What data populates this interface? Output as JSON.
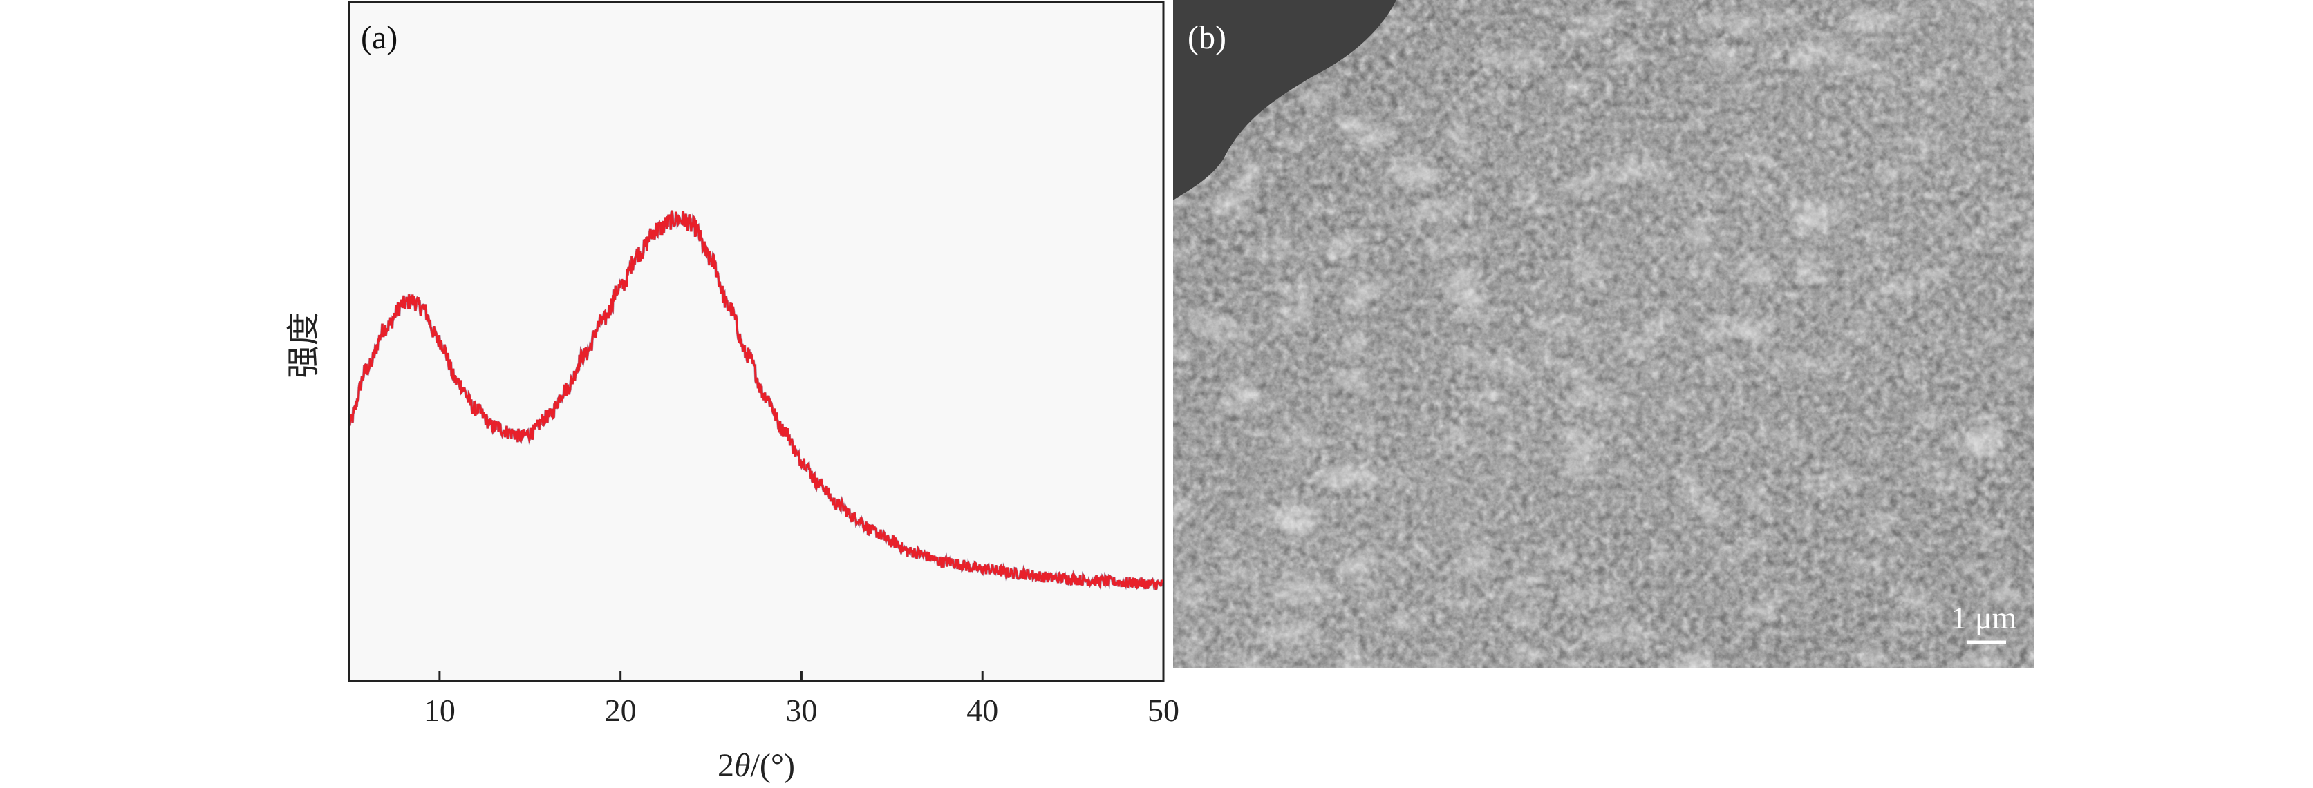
{
  "panels": {
    "a": {
      "label": "(a)"
    },
    "b": {
      "label": "(b)",
      "scale_bar_label": "1 μm"
    }
  },
  "chart_data": {
    "type": "line",
    "title": "",
    "xlabel_prefix": "2",
    "xlabel_symbol": "θ",
    "xlabel_suffix": "/(°)",
    "ylabel": "强度",
    "xlim": [
      5,
      50
    ],
    "ylim": [
      0,
      1
    ],
    "x_ticks": [
      10,
      20,
      30,
      40,
      50
    ],
    "y_ticks_shown": false,
    "grid": false,
    "series": [
      {
        "color": "#e8202a",
        "x": [
          5,
          6,
          7,
          8,
          8.5,
          9,
          10,
          11,
          12,
          13,
          14,
          14.5,
          15,
          16,
          17,
          18,
          19,
          20,
          21,
          22,
          23,
          23.5,
          24,
          25,
          26,
          27,
          28,
          29,
          30,
          31,
          32,
          33,
          34,
          35,
          36,
          38,
          40,
          42,
          44,
          46,
          48,
          50
        ],
        "y": [
          0.38,
          0.46,
          0.52,
          0.555,
          0.56,
          0.55,
          0.5,
          0.44,
          0.4,
          0.375,
          0.365,
          0.36,
          0.365,
          0.39,
          0.43,
          0.48,
          0.53,
          0.58,
          0.63,
          0.665,
          0.68,
          0.68,
          0.67,
          0.62,
          0.55,
          0.48,
          0.42,
          0.37,
          0.325,
          0.29,
          0.26,
          0.24,
          0.22,
          0.205,
          0.19,
          0.175,
          0.165,
          0.158,
          0.152,
          0.148,
          0.145,
          0.142
        ]
      }
    ]
  }
}
